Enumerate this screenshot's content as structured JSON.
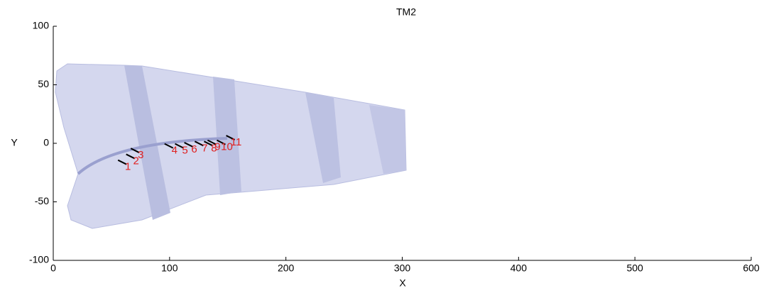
{
  "chart_data": {
    "type": "scatter",
    "title": "TM2",
    "xlabel": "X",
    "ylabel": "Y",
    "x": [
      63,
      70,
      74,
      103,
      112,
      120,
      129,
      137,
      140,
      148,
      156
    ],
    "values": [
      -18,
      -13,
      -8,
      -4,
      -4,
      -3,
      -2,
      -2,
      -1,
      -1,
      3
    ],
    "point_labels": [
      "1",
      "2",
      "3",
      "4",
      "5",
      "6",
      "7",
      "8",
      "9",
      "10",
      "11"
    ],
    "color": "#000000",
    "label_color": "#e02020",
    "xlim": [
      0,
      600
    ],
    "xticks": [
      0,
      100,
      200,
      300,
      400,
      500,
      600
    ],
    "ylim": [
      -100,
      100
    ],
    "yticks": [
      -100,
      -50,
      0,
      50,
      100
    ]
  }
}
